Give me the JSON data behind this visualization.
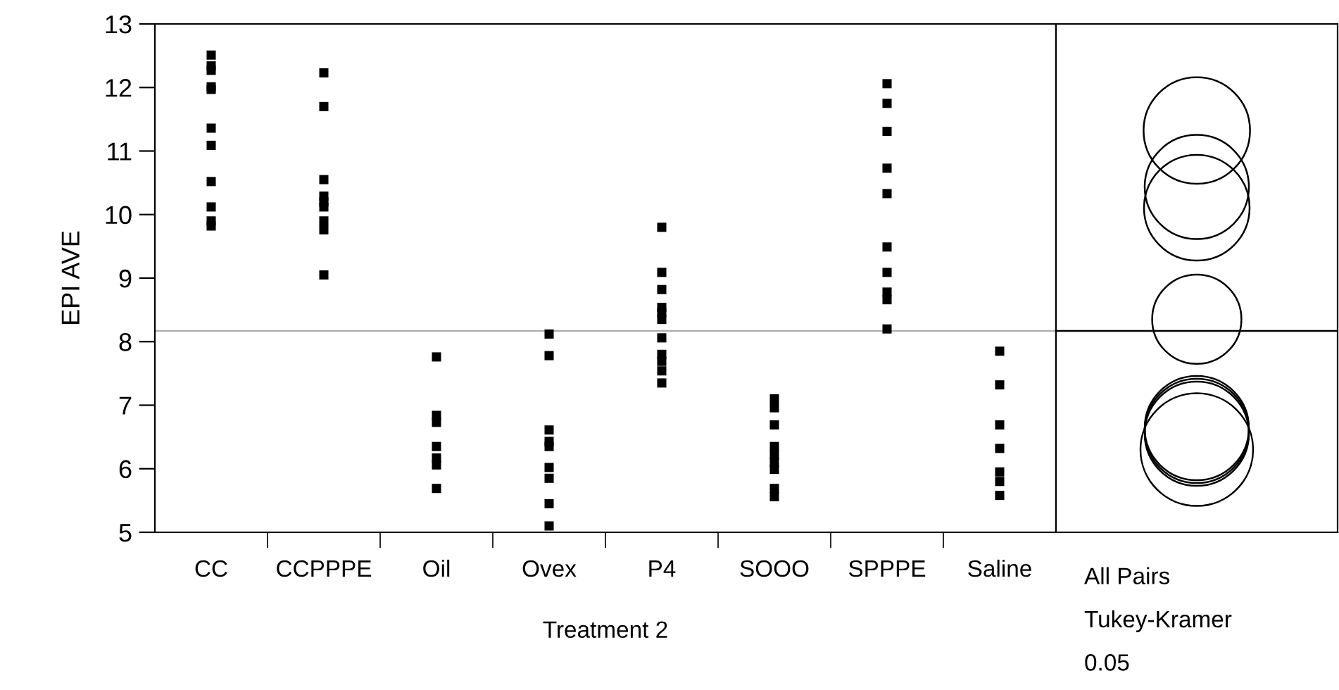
{
  "chart_data": [
    {
      "type": "scatter",
      "xlabel": "Treatment 2",
      "ylabel": "EPI AVE",
      "categories": [
        "CC",
        "CCPPPE",
        "Oil",
        "Ovex",
        "P4",
        "SOOO",
        "SPPPE",
        "Saline"
      ],
      "series": [
        {
          "color": "#000000",
          "marker": "square",
          "x": [
            "CC",
            "CC",
            "CC",
            "CC",
            "CC",
            "CC",
            "CC",
            "CC",
            "CC",
            "CC",
            "CC",
            "CCPPPE",
            "CCPPPE",
            "CCPPPE",
            "CCPPPE",
            "CCPPPE",
            "CCPPPE",
            "CCPPPE",
            "CCPPPE",
            "CCPPPE",
            "Oil",
            "Oil",
            "Oil",
            "Oil",
            "Oil",
            "Oil",
            "Oil",
            "Ovex",
            "Ovex",
            "Ovex",
            "Ovex",
            "Ovex",
            "Ovex",
            "Ovex",
            "Ovex",
            "Ovex",
            "P4",
            "P4",
            "P4",
            "P4",
            "P4",
            "P4",
            "P4",
            "P4",
            "P4",
            "P4",
            "P4",
            "SOOO",
            "SOOO",
            "SOOO",
            "SOOO",
            "SOOO",
            "SOOO",
            "SOOO",
            "SOOO",
            "SOOO",
            "SPPPE",
            "SPPPE",
            "SPPPE",
            "SPPPE",
            "SPPPE",
            "SPPPE",
            "SPPPE",
            "SPPPE",
            "SPPPE",
            "SPPPE",
            "Saline",
            "Saline",
            "Saline",
            "Saline",
            "Saline",
            "Saline",
            "Saline"
          ],
          "values": [
            12.51,
            12.34,
            12.27,
            12.01,
            11.97,
            11.36,
            11.09,
            10.52,
            10.12,
            9.9,
            9.82,
            12.23,
            11.7,
            10.55,
            10.29,
            10.2,
            10.12,
            9.9,
            9.76,
            9.05,
            7.76,
            6.84,
            6.73,
            6.35,
            6.17,
            6.06,
            5.69,
            8.12,
            7.78,
            6.61,
            6.43,
            6.35,
            6.02,
            5.85,
            5.45,
            5.1,
            9.8,
            9.09,
            8.82,
            8.54,
            8.46,
            8.35,
            8.06,
            7.8,
            7.69,
            7.54,
            7.35,
            7.1,
            6.96,
            6.69,
            6.35,
            6.22,
            6.1,
            5.99,
            5.69,
            5.56,
            12.06,
            11.75,
            11.31,
            10.73,
            10.33,
            9.49,
            9.09,
            8.78,
            8.66,
            8.2,
            7.85,
            7.32,
            6.69,
            6.32,
            5.95,
            5.8,
            5.58
          ]
        }
      ],
      "ylim": [
        5,
        13
      ],
      "yticks": [
        5,
        6,
        7,
        8,
        9,
        10,
        11,
        12,
        13
      ],
      "grid": false,
      "legend": false,
      "ref_lines": [
        {
          "axis": "y",
          "value": 8.17,
          "color": "#b0b0b0"
        }
      ]
    },
    {
      "type": "other",
      "annotations": [
        "All Pairs",
        "Tukey-Kramer",
        "0.05"
      ]
    }
  ]
}
